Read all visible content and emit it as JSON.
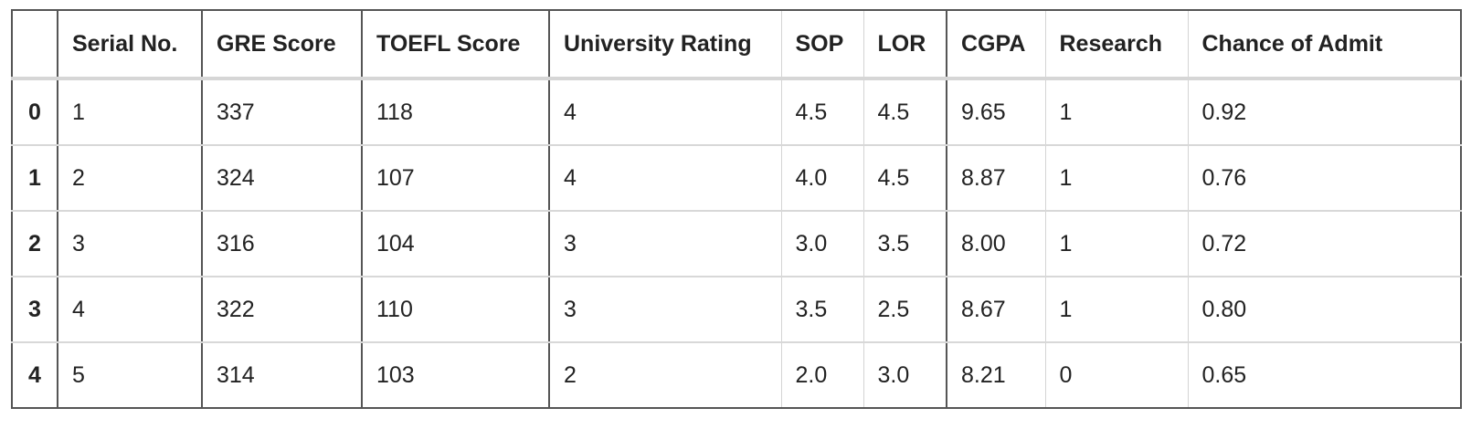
{
  "table": {
    "index_header": "",
    "columns": [
      "Serial No.",
      "GRE Score",
      "TOEFL Score",
      "University Rating",
      "SOP",
      "LOR",
      "CGPA",
      "Research",
      "Chance of Admit"
    ],
    "rows": [
      {
        "index": "0",
        "cells": [
          "1",
          "337",
          "118",
          "4",
          "4.5",
          "4.5",
          "9.65",
          "1",
          "0.92"
        ]
      },
      {
        "index": "1",
        "cells": [
          "2",
          "324",
          "107",
          "4",
          "4.0",
          "4.5",
          "8.87",
          "1",
          "0.76"
        ]
      },
      {
        "index": "2",
        "cells": [
          "3",
          "316",
          "104",
          "3",
          "3.0",
          "3.5",
          "8.00",
          "1",
          "0.72"
        ]
      },
      {
        "index": "3",
        "cells": [
          "4",
          "322",
          "110",
          "3",
          "3.5",
          "2.5",
          "8.67",
          "1",
          "0.80"
        ]
      },
      {
        "index": "4",
        "cells": [
          "5",
          "314",
          "103",
          "2",
          "2.0",
          "3.0",
          "8.21",
          "0",
          "0.65"
        ]
      }
    ]
  }
}
